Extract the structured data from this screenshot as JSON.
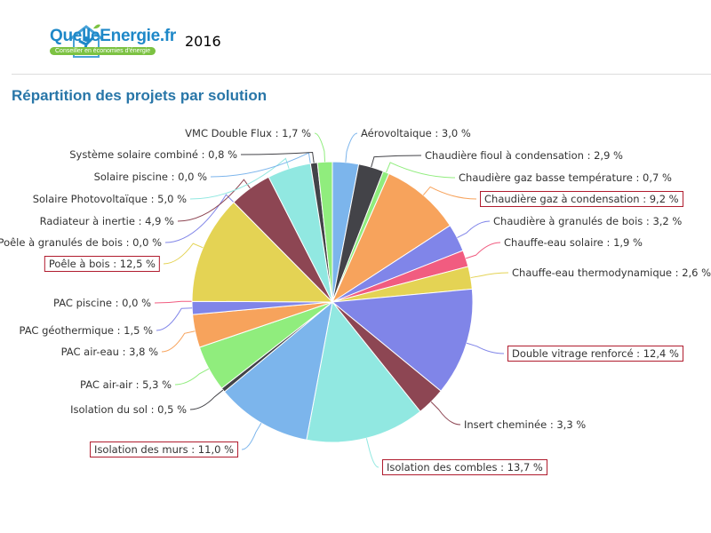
{
  "header": {
    "brand": "QuelleEnergie.fr",
    "tagline": "Conseiller en économies d'énergie",
    "year": "2016"
  },
  "chart_data": {
    "type": "pie",
    "title": "Répartition des projets par solution",
    "unit": "%",
    "series": [
      {
        "name": "Aérovoltaique",
        "value": 3.0,
        "label": "Aérovoltaique : 3,0 %",
        "color": "#7cb5ec"
      },
      {
        "name": "Chaudière fioul à condensation",
        "value": 2.9,
        "label": "Chaudière fioul à condensation : 2,9 %",
        "color": "#434348"
      },
      {
        "name": "Chaudière gaz basse température",
        "value": 0.7,
        "label": "Chaudière gaz basse température : 0,7 %",
        "color": "#90ed7d"
      },
      {
        "name": "Chaudière gaz à condensation",
        "value": 9.2,
        "label": "Chaudière gaz à condensation : 9,2 %",
        "color": "#f7a35c",
        "highlight": true
      },
      {
        "name": "Chaudière à granulés de bois",
        "value": 3.2,
        "label": "Chaudière à granulés de bois : 3,2 %",
        "color": "#8085e9"
      },
      {
        "name": "Chauffe-eau solaire",
        "value": 1.9,
        "label": "Chauffe-eau solaire : 1,9 %",
        "color": "#f15c80"
      },
      {
        "name": "Chauffe-eau thermodynamique",
        "value": 2.6,
        "label": "Chauffe-eau thermodynamique : 2,6 %",
        "color": "#e4d354"
      },
      {
        "name": "Double vitrage renforcé",
        "value": 12.4,
        "label": "Double vitrage renforcé : 12,4 %",
        "color": "#8085e8",
        "highlight": true
      },
      {
        "name": "Insert cheminée",
        "value": 3.3,
        "label": "Insert cheminée : 3,3 %",
        "color": "#8d4653"
      },
      {
        "name": "Isolation des combles",
        "value": 13.7,
        "label": "Isolation des combles : 13,7 %",
        "color": "#91e8e1",
        "highlight": true
      },
      {
        "name": "Isolation des murs",
        "value": 11.0,
        "label": "Isolation des murs : 11,0 %",
        "color": "#7cb5ec",
        "highlight": true
      },
      {
        "name": "Isolation du sol",
        "value": 0.5,
        "label": "Isolation du sol : 0,5 %",
        "color": "#434348"
      },
      {
        "name": "PAC air-air",
        "value": 5.3,
        "label": "PAC air-air : 5,3 %",
        "color": "#90ed7d"
      },
      {
        "name": "PAC air-eau",
        "value": 3.8,
        "label": "PAC air-eau : 3,8 %",
        "color": "#f7a35c"
      },
      {
        "name": "PAC géothermique",
        "value": 1.5,
        "label": "PAC géothermique : 1,5 %",
        "color": "#8085e9"
      },
      {
        "name": "PAC piscine",
        "value": 0.0,
        "label": "PAC piscine : 0,0 %",
        "color": "#f15c80"
      },
      {
        "name": "Poêle à bois",
        "value": 12.5,
        "label": "Poêle à bois : 12,5 %",
        "color": "#e4d354",
        "highlight": true
      },
      {
        "name": "Poêle à granulés de bois",
        "value": 0.0,
        "label": "Poêle à granulés de bois : 0,0 %",
        "color": "#8085e8"
      },
      {
        "name": "Radiateur à inertie",
        "value": 4.9,
        "label": "Radiateur à inertie : 4,9 %",
        "color": "#8d4653"
      },
      {
        "name": "Solaire Photovoltaïque",
        "value": 5.0,
        "label": "Solaire Photovoltaïque : 5,0 %",
        "color": "#91e8e1"
      },
      {
        "name": "Solaire piscine",
        "value": 0.0,
        "label": "Solaire piscine : 0,0 %",
        "color": "#7cb5ec"
      },
      {
        "name": "Système solaire combiné",
        "value": 0.8,
        "label": "Système solaire combiné : 0,8 %",
        "color": "#434348"
      },
      {
        "name": "VMC Double Flux",
        "value": 1.7,
        "label": "VMC Double Flux : 1,7 %",
        "color": "#90ed7d"
      }
    ]
  }
}
